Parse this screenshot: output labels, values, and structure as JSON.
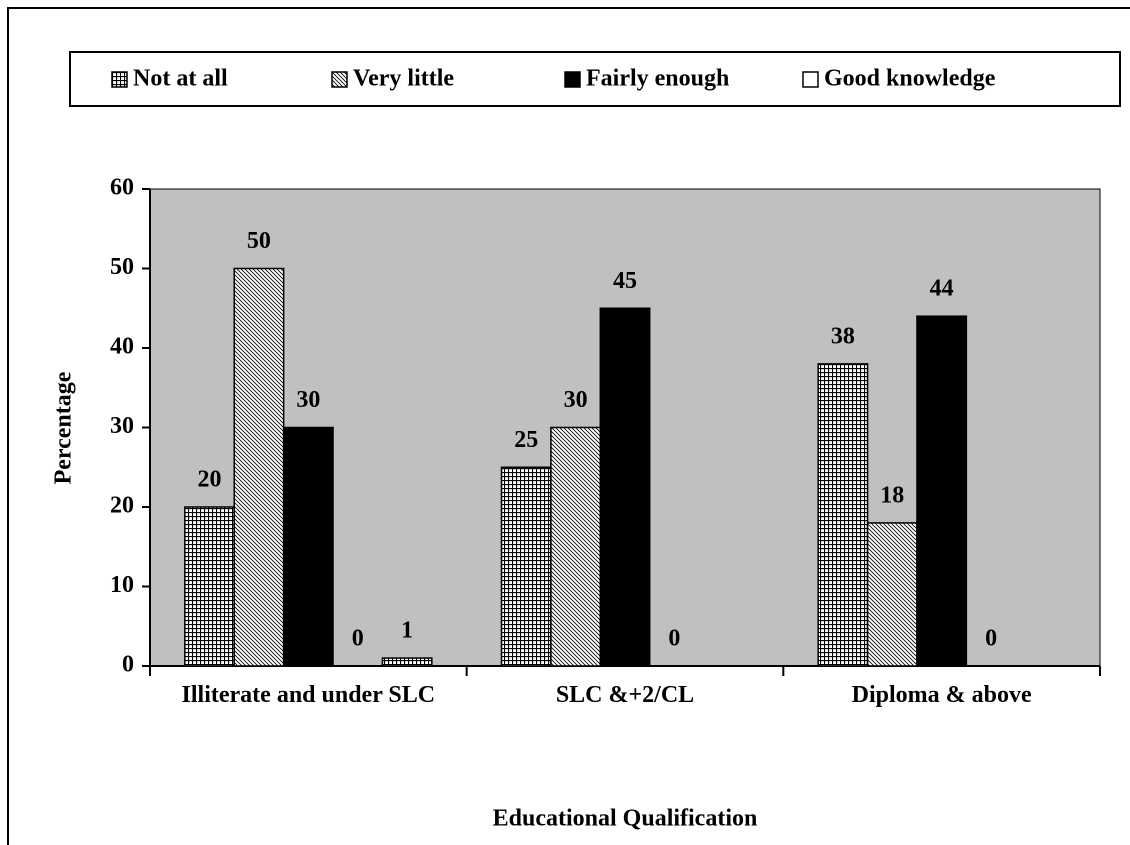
{
  "chart_data": {
    "type": "bar",
    "x_label": "Educational Qualification",
    "y_label": "Percentage",
    "categories": [
      "Illiterate and under SLC",
      "SLC &+2/CL",
      "Diploma & above"
    ],
    "series": [
      {
        "name": "Not at all",
        "color": "#000000",
        "pattern": "grid",
        "values": [
          20,
          25,
          38
        ]
      },
      {
        "name": "Very little",
        "color": "#000000",
        "pattern": "hatch",
        "values": [
          50,
          30,
          18
        ]
      },
      {
        "name": "Fairly enough",
        "color": "#000000",
        "pattern": "solid",
        "values": [
          30,
          45,
          44
        ]
      },
      {
        "name": "Good knowledge",
        "color": "#ffffff",
        "pattern": "solid",
        "values": [
          0,
          0,
          0
        ]
      },
      {
        "color": "#000000",
        "pattern": "grid",
        "values": [
          1,
          null,
          null
        ]
      }
    ],
    "ylim": [
      0,
      60
    ],
    "yticks": [
      0,
      10,
      20,
      30,
      40,
      50,
      60
    ],
    "legend": "top",
    "background": "#c0c0c0"
  }
}
